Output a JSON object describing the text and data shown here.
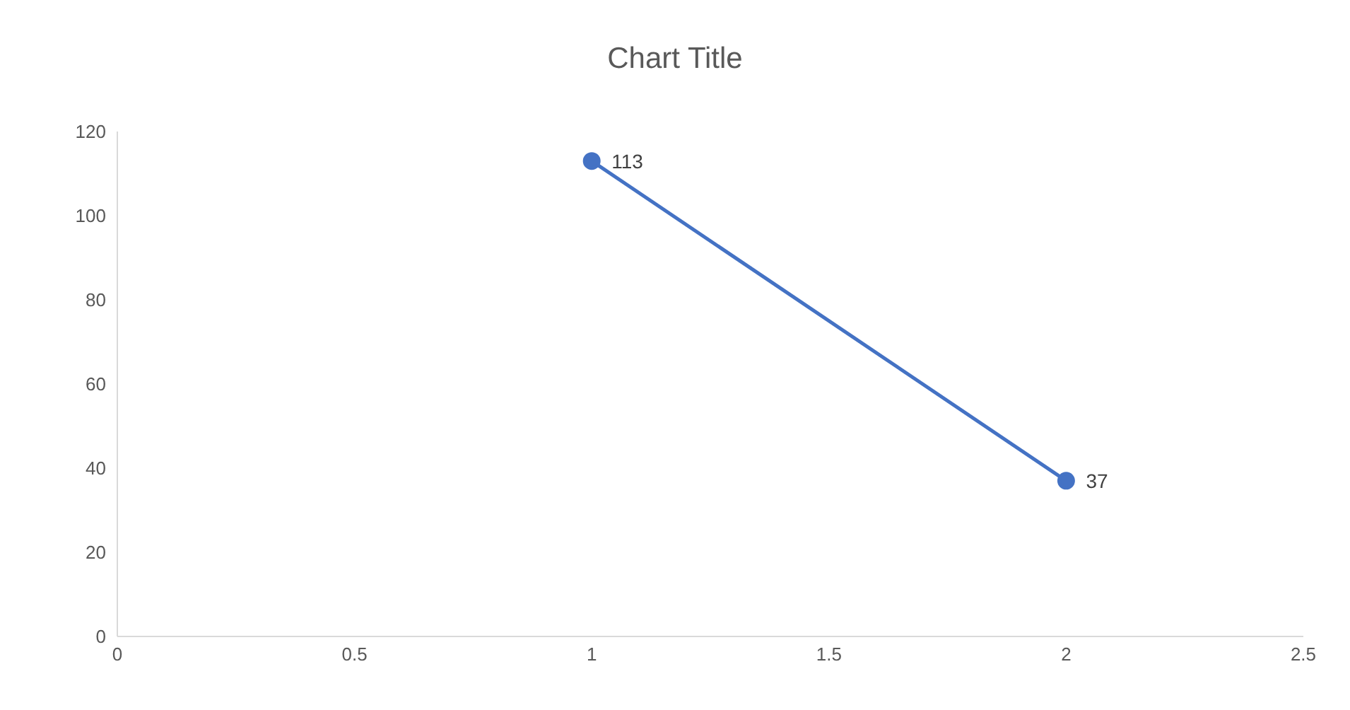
{
  "chart_data": {
    "type": "line",
    "title": "Chart Title",
    "x": [
      1,
      2
    ],
    "series": [
      {
        "color": "#4472c4",
        "values": [
          113,
          37
        ]
      }
    ],
    "xlim": [
      0,
      2.5
    ],
    "xticks": [
      0,
      0.5,
      1,
      1.5,
      2,
      2.5
    ],
    "ylim": [
      0,
      120
    ],
    "yticks": [
      0,
      20,
      40,
      60,
      80,
      100,
      120
    ],
    "data_labels": true,
    "marker": "circle",
    "line_style": "solid",
    "grid": false
  }
}
